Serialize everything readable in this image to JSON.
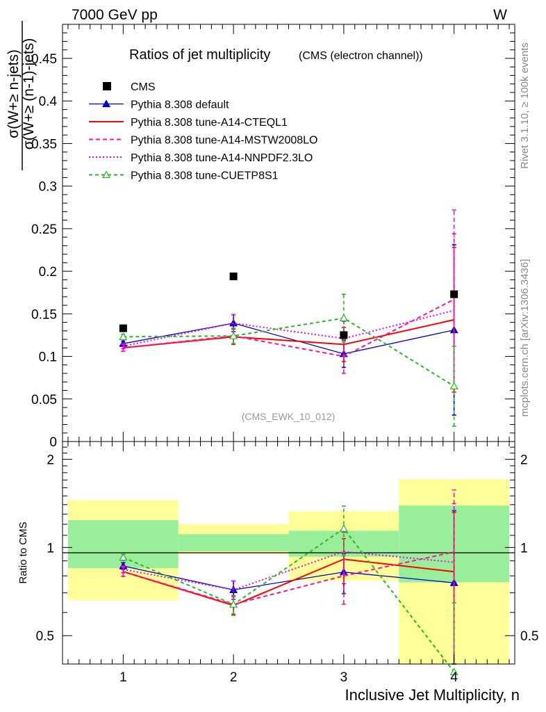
{
  "header": {
    "left": "7000 GeV pp",
    "right": "W"
  },
  "side_labels": {
    "rivet": "Rivet 3.1.10, ≥ 100k events",
    "mcplots": "mcplots.cern.ch [arXiv:1306.3436]"
  },
  "chart_data": {
    "type": "line",
    "title": "Ratios of jet multiplicity",
    "subtitle": "(CMS (electron channel))",
    "analysis_tag": "(CMS_EWK_10_012)",
    "ylabel_numerator": "σ(W+≥ n-jets)",
    "ylabel_denominator": "σ(W+≥ (n-1)-jets)",
    "xlabel": "Inclusive Jet Multiplicity, n",
    "ratio_ylabel": "Ratio to CMS",
    "x": [
      1,
      2,
      3,
      4
    ],
    "xlim": [
      0.45,
      4.55
    ],
    "ylim": [
      0,
      0.49
    ],
    "ratio_ylim": [
      0.4,
      2.3
    ],
    "ratio_ticks": [
      "0.5",
      "1",
      "2"
    ],
    "main_ticks": [
      "0",
      "0.05",
      "0.1",
      "0.15",
      "0.2",
      "0.25",
      "0.3",
      "0.35",
      "0.4",
      "0.45"
    ],
    "x_ticks": [
      "1",
      "2",
      "3",
      "4"
    ],
    "data": {
      "name": "CMS",
      "values": [
        0.133,
        0.194,
        0.125,
        0.173
      ],
      "bands_inner": [
        [
          0.85,
          1.24
        ],
        [
          0.97,
          1.11
        ],
        [
          0.93,
          1.14
        ],
        [
          0.76,
          1.39
        ]
      ],
      "bands_outer": [
        [
          0.66,
          1.45
        ],
        [
          0.95,
          1.2
        ],
        [
          0.77,
          1.33
        ],
        [
          0.39,
          1.71
        ]
      ]
    },
    "series": [
      {
        "name": "Pythia 8.308 default",
        "color": "#0000cc",
        "dash": "",
        "marker": "triangle",
        "values": [
          0.115,
          0.139,
          0.103,
          0.131
        ],
        "errors": [
          0.003,
          0.01,
          0.016,
          0.1
        ]
      },
      {
        "name": "Pythia 8.308 tune-A14-CTEQL1",
        "color": "#ff0000",
        "dash": "",
        "marker": "none",
        "values": [
          0.11,
          0.123,
          0.114,
          0.143
        ],
        "errors": [
          0.004,
          0.009,
          0.02,
          0.085
        ]
      },
      {
        "name": "Pythia 8.308 tune-A14-MSTW2008LO",
        "color": "#ff1493",
        "dash": "6,4",
        "marker": "none",
        "values": [
          0.11,
          0.124,
          0.1,
          0.167
        ],
        "errors": [
          0.004,
          0.009,
          0.02,
          0.105
        ]
      },
      {
        "name": "Pythia 8.308 tune-A14-NNPDF2.3LO",
        "color": "#ee00ee",
        "dash": "2,3",
        "marker": "none",
        "values": [
          0.112,
          0.139,
          0.121,
          0.154
        ],
        "errors": [
          0.003,
          0.01,
          0.02,
          0.09
        ]
      },
      {
        "name": "Pythia 8.308 tune-CUETP8S1",
        "color": "#22bb22",
        "dash": "5,4",
        "marker": "open-triangle",
        "values": [
          0.123,
          0.124,
          0.145,
          0.065
        ],
        "errors": [
          0.003,
          0.009,
          0.028,
          0.047
        ]
      }
    ]
  }
}
